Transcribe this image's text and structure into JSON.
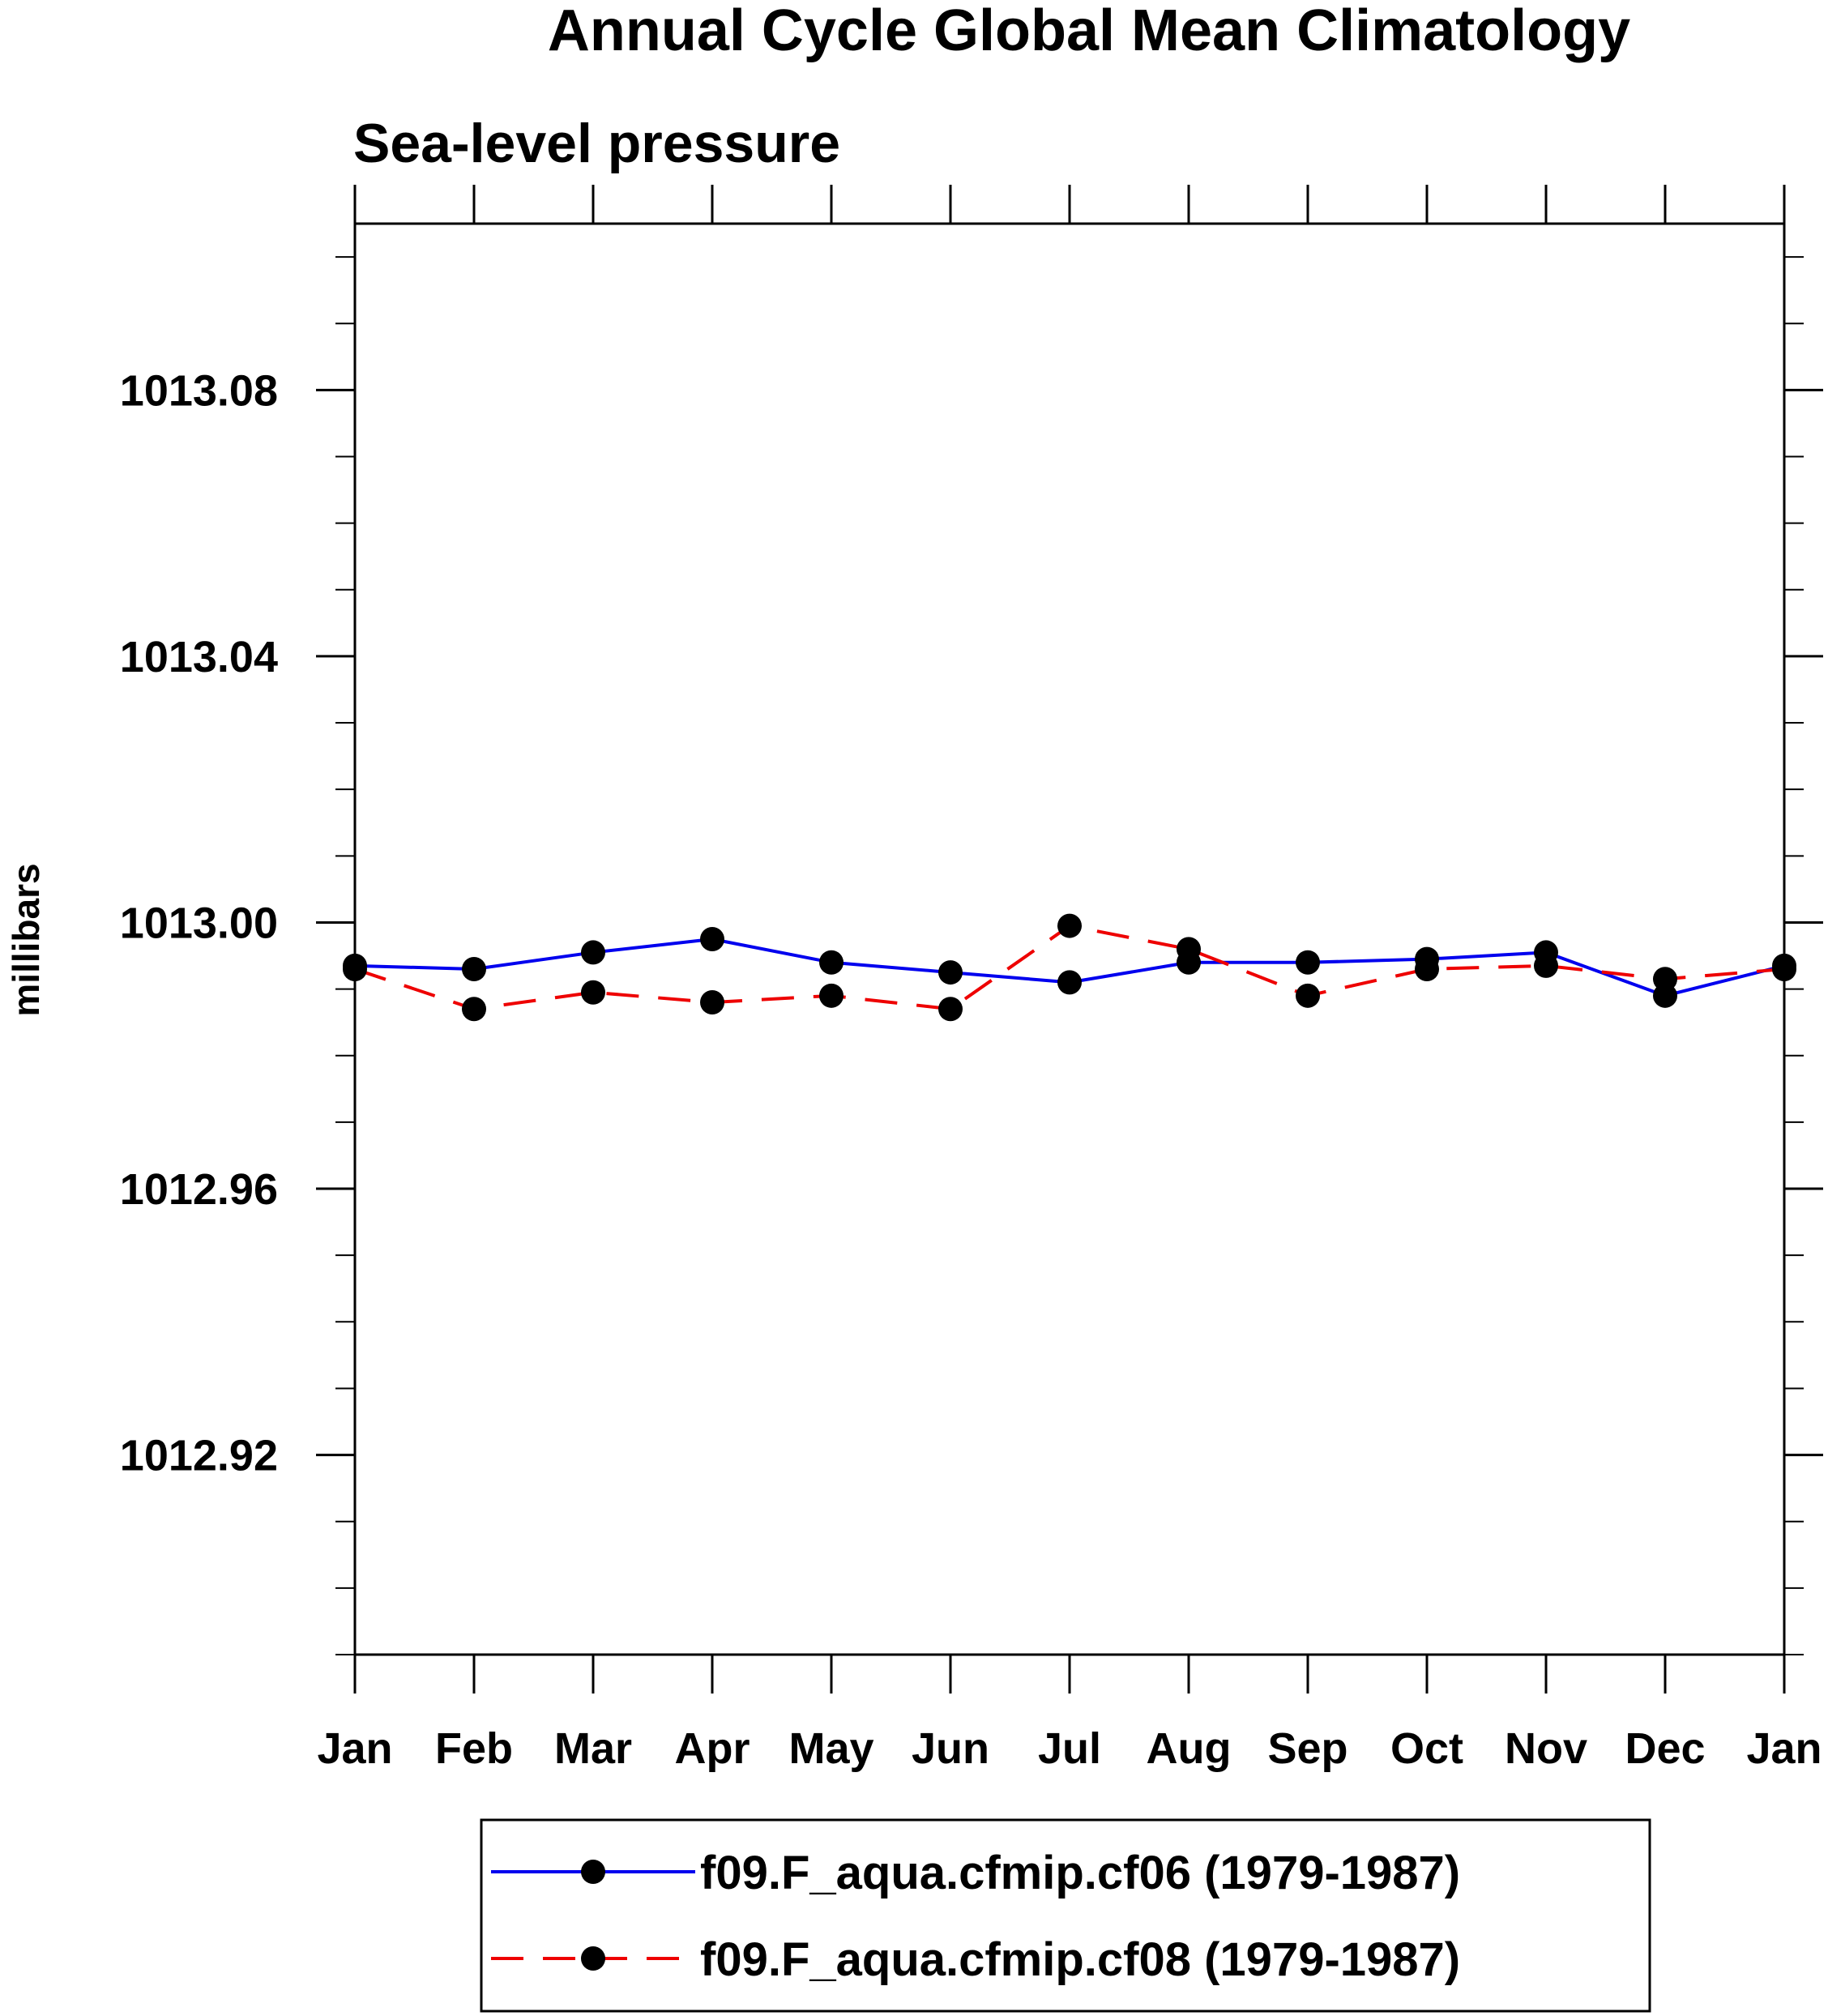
{
  "chart_data": {
    "type": "line",
    "title": "Annual Cycle Global Mean Climatology",
    "subtitle": "Sea-level pressure",
    "xlabel": "",
    "ylabel": "millibars",
    "categories": [
      "Jan",
      "Feb",
      "Mar",
      "Apr",
      "May",
      "Jun",
      "Jul",
      "Aug",
      "Sep",
      "Oct",
      "Nov",
      "Dec",
      "Jan"
    ],
    "ylim": [
      1012.89,
      1013.105
    ],
    "yticks": [
      1012.92,
      1012.96,
      1013.0,
      1013.04,
      1013.08
    ],
    "ytick_labels": [
      "1012.92",
      "1012.96",
      "1013.00",
      "1013.04",
      "1013.08"
    ],
    "yminor_step": 0.01,
    "grid": false,
    "legend_position": "bottom-center",
    "series": [
      {
        "name": "f09.F_aqua.cfmip.cf06 (1979-1987)",
        "color": "#0000ee",
        "dash": "solid",
        "marker": "filled-circle",
        "values": [
          1012.9935,
          1012.993,
          1012.9955,
          1012.9975,
          1012.994,
          1012.9925,
          1012.991,
          1012.994,
          1012.994,
          1012.9945,
          1012.9955,
          1012.989,
          1012.9935
        ]
      },
      {
        "name": "f09.F_aqua.cfmip.cf08 (1979-1987)",
        "color": "#ee0000",
        "dash": "dashed",
        "marker": "filled-circle",
        "values": [
          1012.993,
          1012.987,
          1012.9895,
          1012.988,
          1012.989,
          1012.987,
          1012.9995,
          1012.996,
          1012.989,
          1012.993,
          1012.9935,
          1012.9915,
          1012.993
        ]
      }
    ]
  }
}
